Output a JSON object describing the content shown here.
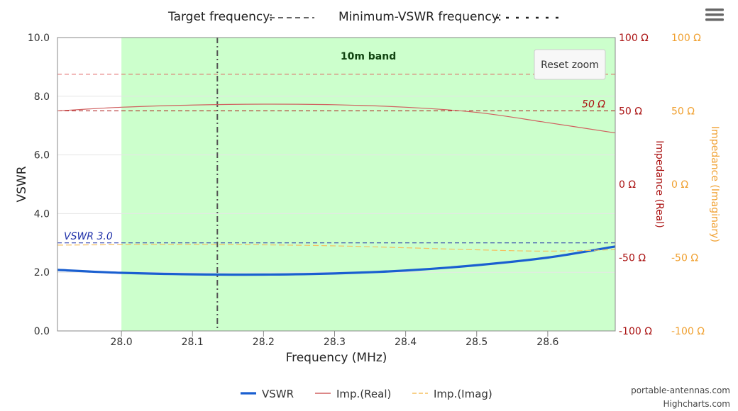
{
  "chart_data": {
    "type": "line",
    "title": "",
    "xlabel": "Frequency (MHz)",
    "ylabel": "VSWR",
    "xlim": [
      27.91,
      28.695
    ],
    "ylim": [
      0,
      10
    ],
    "x_ticks": [
      "28.0",
      "28.1",
      "28.2",
      "28.3",
      "28.4",
      "28.5",
      "28.6"
    ],
    "y_ticks": [
      "0.0",
      "2.0",
      "4.0",
      "6.0",
      "8.0",
      "10.0"
    ],
    "right_axes": [
      {
        "title": "Impedance (Real)",
        "color": "#aa1111",
        "ticks": [
          "-100 Ω",
          "-50 Ω",
          "0 Ω",
          "50 Ω",
          "100 Ω"
        ],
        "range": [
          -100,
          100
        ]
      },
      {
        "title": "Impedance (Imaginary)",
        "color": "#f0a030",
        "ticks": [
          "-100 Ω",
          "-50 Ω",
          "0 Ω",
          "50 Ω",
          "100 Ω"
        ],
        "range": [
          -100,
          100
        ]
      }
    ],
    "band": {
      "label": "10m band",
      "from": 28.0,
      "to": 28.695,
      "color": "#ccffcc"
    },
    "target_frequency": 28.135,
    "plot_lines": [
      {
        "label": "VSWR 3.0",
        "axis": "vswr",
        "value": 3.0,
        "color": "#2233aa"
      },
      {
        "label": "50 Ω",
        "axis": "real",
        "value": 50,
        "color": "#aa1111"
      },
      {
        "label": "",
        "axis": "real",
        "value": 75,
        "color": "#e06060"
      }
    ],
    "x": [
      27.91,
      28.0,
      28.1,
      28.2,
      28.3,
      28.4,
      28.5,
      28.6,
      28.695
    ],
    "series": [
      {
        "name": "VSWR",
        "axis": "vswr",
        "color": "#1a5fd0",
        "values": [
          2.08,
          1.98,
          1.93,
          1.92,
          1.96,
          2.06,
          2.24,
          2.5,
          2.88
        ]
      },
      {
        "name": "Imp.(Real)",
        "axis": "real",
        "color": "#d06060",
        "values": [
          50.0,
          52.5,
          54.0,
          54.6,
          54.2,
          52.5,
          49.0,
          42.0,
          35.0
        ]
      },
      {
        "name": "Imp.(Imag)",
        "axis": "imag",
        "color": "#f5c060",
        "values": [
          -41.5,
          -41.2,
          -41.0,
          -41.3,
          -42.0,
          -43.3,
          -44.7,
          -45.6,
          -44.6
        ]
      }
    ],
    "legend": {
      "position": "bottom"
    },
    "grid": true
  },
  "top_legend": {
    "target_label": "Target frequency:",
    "min_vswr_label": "Minimum-VSWR frequency:"
  },
  "buttons": {
    "reset_zoom": "Reset zoom"
  },
  "credits": {
    "line1": "portable-antennas.com",
    "line2": "Highcharts.com"
  }
}
